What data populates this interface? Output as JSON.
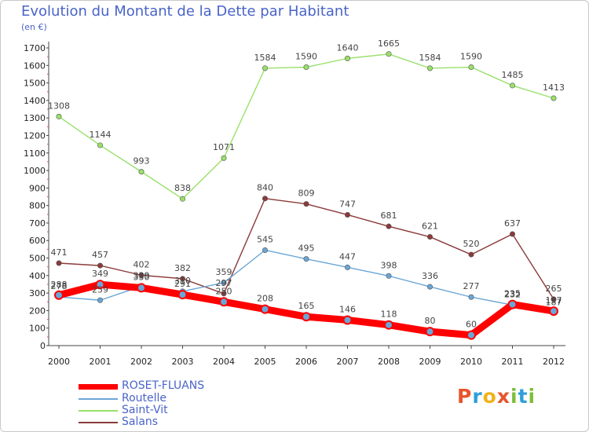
{
  "title": "Evolution du Montant de la Dette par Habitant",
  "subtitle": "(en €)",
  "logo": {
    "p": "P",
    "r": "r",
    "o": "o",
    "x": "x",
    "i1": "i",
    "t": "t",
    "i2": "i"
  },
  "chart_data": {
    "type": "line",
    "title": "Evolution du Montant de la Dette par Habitant",
    "subtitle": "(en €)",
    "x": [
      "2000",
      "2001",
      "2002",
      "2003",
      "2004",
      "2005",
      "2006",
      "2007",
      "2008",
      "2009",
      "2010",
      "2011",
      "2012"
    ],
    "ylim": [
      0,
      1700
    ],
    "yticks": [
      0,
      100,
      200,
      300,
      400,
      500,
      600,
      700,
      800,
      900,
      1000,
      1100,
      1200,
      1300,
      1400,
      1500,
      1600,
      1700
    ],
    "grid": false,
    "legend_position": "bottom-left",
    "series": [
      {
        "name": "ROSET-FLUANS",
        "color": "#ff0000",
        "highlight": true,
        "values": [
          288,
          349,
          330,
          291,
          250,
          208,
          165,
          146,
          118,
          80,
          60,
          235,
          197
        ]
      },
      {
        "name": "Routelle",
        "color": "#6aa6d6",
        "values": [
          278,
          259,
          339,
          310,
          359,
          545,
          495,
          447,
          398,
          336,
          277,
          232,
          187
        ]
      },
      {
        "name": "Saint-Vit",
        "color": "#99e06a",
        "values": [
          1308,
          1144,
          993,
          838,
          1071,
          1584,
          1590,
          1640,
          1665,
          1584,
          1590,
          1485,
          1413
        ]
      },
      {
        "name": "Salans",
        "color": "#8b3a3a",
        "values": [
          471,
          457,
          402,
          382,
          297,
          840,
          809,
          747,
          681,
          621,
          520,
          637,
          265
        ]
      }
    ]
  }
}
